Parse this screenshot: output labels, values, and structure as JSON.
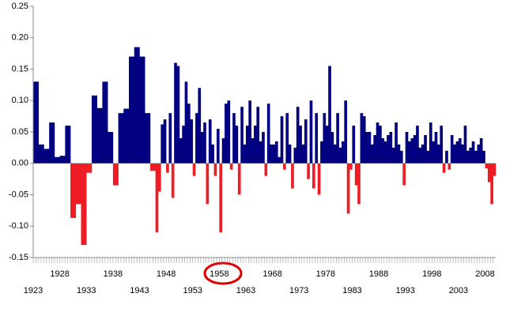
{
  "chart_data": {
    "type": "bar",
    "categories": [
      "1923",
      null,
      null,
      null,
      null,
      null,
      null,
      null,
      null,
      null,
      "1928",
      null,
      null,
      null,
      null,
      null,
      null,
      null,
      null,
      null,
      "1933",
      null,
      null,
      null,
      null,
      null,
      null,
      null,
      null,
      null,
      "1938",
      null,
      null,
      null,
      null,
      null,
      null,
      null,
      null,
      null,
      "1943",
      null,
      null,
      null,
      null,
      null,
      null,
      null,
      null,
      null,
      "1948",
      null,
      null,
      null,
      null,
      null,
      null,
      null,
      null,
      null,
      "1953",
      null,
      null,
      null,
      null,
      null,
      null,
      null,
      null,
      null,
      "1958",
      null,
      null,
      null,
      null,
      null,
      null,
      null,
      null,
      null,
      "1963",
      null,
      null,
      null,
      null,
      null,
      null,
      null,
      null,
      null,
      "1968",
      null,
      null,
      null,
      null,
      null,
      null,
      null,
      null,
      null,
      "1973",
      null,
      null,
      null,
      null,
      null,
      null,
      null,
      null,
      null,
      "1978",
      null,
      null,
      null,
      null,
      null,
      null,
      null,
      null,
      null,
      "1983",
      null,
      null,
      null,
      null,
      null,
      null,
      null,
      null,
      null,
      "1988",
      null,
      null,
      null,
      null,
      null,
      null,
      null,
      null,
      null,
      "1993",
      null,
      null,
      null,
      null,
      null,
      null,
      null,
      null,
      null,
      "1998",
      null,
      null,
      null,
      null,
      null,
      null,
      null,
      null,
      null,
      "2003",
      null,
      null,
      null,
      null,
      null,
      null,
      null,
      null,
      null,
      "2008",
      null,
      null,
      null
    ],
    "values": [
      0.13,
      0.13,
      0.03,
      0.03,
      0.023,
      0.023,
      0.065,
      0.065,
      0.01,
      0.01,
      0.012,
      0.012,
      0.06,
      0.06,
      -0.087,
      -0.087,
      -0.065,
      -0.065,
      -0.13,
      -0.13,
      -0.015,
      -0.015,
      0.108,
      0.108,
      0.088,
      0.088,
      0.13,
      0.13,
      0.05,
      0.05,
      -0.035,
      -0.035,
      0.08,
      0.08,
      0.087,
      0.087,
      0.17,
      0.17,
      0.185,
      0.185,
      0.17,
      0.17,
      0.08,
      0.08,
      -0.012,
      -0.012,
      -0.11,
      -0.045,
      0.062,
      0.07,
      -0.015,
      0.08,
      -0.055,
      0.16,
      0.155,
      0.04,
      0.06,
      0.13,
      0.095,
      0.07,
      -0.02,
      0.08,
      0.12,
      0.05,
      0.065,
      -0.065,
      0.07,
      0.03,
      -0.02,
      0.055,
      -0.11,
      0.04,
      0.095,
      0.1,
      -0.01,
      0.08,
      0.06,
      -0.05,
      0.09,
      0.03,
      0.06,
      0.1,
      0.04,
      0.06,
      0.09,
      0.035,
      0.05,
      -0.02,
      0.095,
      0.03,
      0.03,
      0.035,
      0.01,
      0.075,
      -0.01,
      0.08,
      0.03,
      -0.04,
      0.025,
      0.09,
      0.06,
      0.03,
      0.07,
      -0.025,
      0.1,
      -0.04,
      0.08,
      -0.05,
      0.035,
      0.08,
      0.06,
      0.155,
      0.05,
      0.03,
      0.08,
      0.025,
      0.035,
      0.1,
      -0.08,
      -0.01,
      0.06,
      -0.035,
      -0.065,
      0.08,
      0.075,
      0.05,
      0.05,
      0.03,
      0.045,
      0.065,
      0.06,
      0.04,
      0.035,
      0.045,
      0.05,
      0.025,
      0.065,
      0.03,
      0.02,
      -0.035,
      0.05,
      0.035,
      0.04,
      0.045,
      0.06,
      0.025,
      0.03,
      0.045,
      0.02,
      0.065,
      0.035,
      0.05,
      0.03,
      0.06,
      -0.015,
      0.02,
      -0.01,
      0.045,
      0.03,
      0.035,
      0.04,
      0.03,
      0.06,
      0.02,
      0.025,
      0.035,
      0.02,
      0.03,
      0.04,
      0.02,
      -0.008,
      -0.03,
      -0.065,
      -0.02
    ],
    "positive_color": "#000080",
    "negative_color": "#ee1c24",
    "ylim": [
      -0.15,
      0.25
    ],
    "yticks": [
      -0.15,
      {
        "value": -0.1,
        "label": "-0.10"
      },
      -0.05,
      {
        "value": 0,
        "label": "0.00"
      },
      0.05,
      {
        "value": 0.1,
        "label": "0.10"
      },
      0.15,
      {
        "value": 0.2,
        "label": "0.20"
      },
      0.25
    ],
    "grid": false
  }
}
